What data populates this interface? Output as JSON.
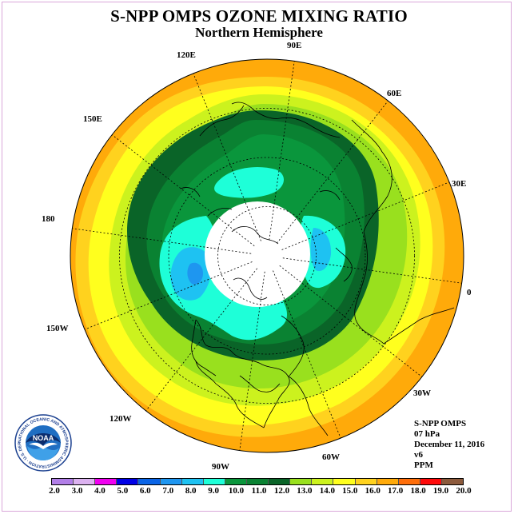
{
  "title": "S-NPP OMPS OZONE MIXING RATIO",
  "subtitle": "Northern Hemisphere",
  "longitude_labels": [
    "90E",
    "60E",
    "30E",
    "0",
    "30W",
    "60W",
    "90W",
    "120W",
    "150W",
    "180",
    "150E",
    "120E"
  ],
  "info": {
    "instrument": "S-NPP OMPS",
    "level": "07 hPa",
    "date": "December 11, 2016",
    "version": "v6",
    "units": "PPM"
  },
  "logo": {
    "text": "NOAA",
    "ring_text": "NATIONAL OCEANIC AND ATMOSPHERIC ADMINISTRATION · U.S. DEPARTMENT OF COMMERCE"
  },
  "colorbar": {
    "labels": [
      "2.0",
      "3.0",
      "4.0",
      "5.0",
      "6.0",
      "7.0",
      "8.0",
      "9.0",
      "10.0",
      "11.0",
      "12.0",
      "13.0",
      "14.0",
      "15.0",
      "16.0",
      "17.0",
      "18.0",
      "19.0",
      "20.0"
    ],
    "colors": [
      "#b27fe8",
      "#dcb2f0",
      "#f000f0",
      "#0000e6",
      "#0a64e6",
      "#1e96f0",
      "#1ec2f2",
      "#1effd8",
      "#0a963c",
      "#0a8232",
      "#0a6428",
      "#99e01e",
      "#ccf21e",
      "#ffff1e",
      "#ffd21e",
      "#ffaa0a",
      "#ff6e0a",
      "#ff0a0a",
      "#8c5a3c"
    ]
  },
  "colors": {
    "c_7": "#1e96f0",
    "c_8": "#1ec2f2",
    "c_9": "#1effd8",
    "c_10": "#0a963c",
    "c_11": "#0a8232",
    "c_12": "#0a6428",
    "c_13": "#99e01e",
    "c_14": "#ccf21e",
    "c_15": "#ffff1e",
    "c_16": "#ffd21e",
    "c_17": "#ffaa0a"
  }
}
